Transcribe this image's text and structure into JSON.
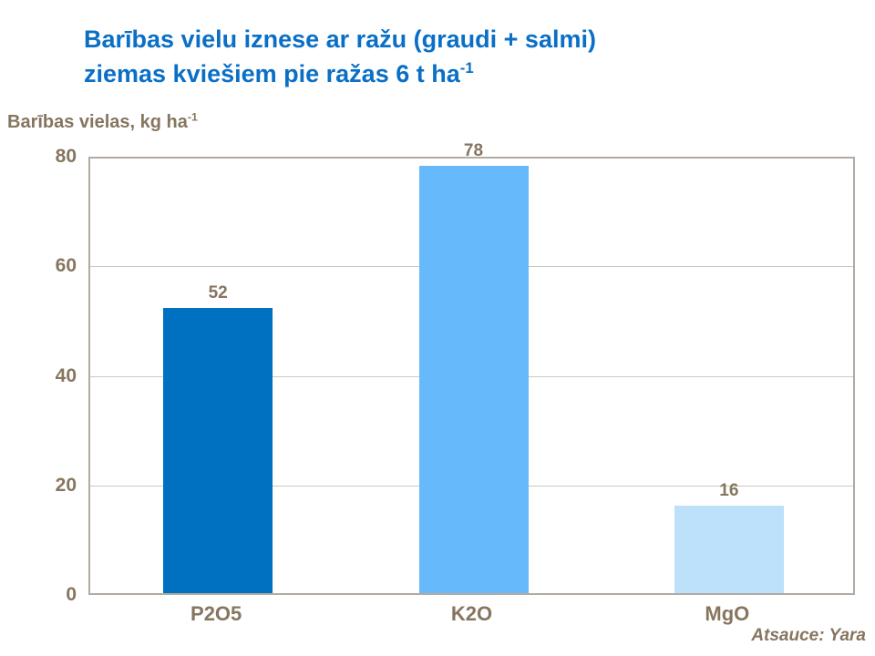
{
  "title": {
    "line1": "Barības vielu iznese ar ražu (graudi + salmi)",
    "line2_main": "ziemas kviešiem pie ražas 6 t ha",
    "line2_sup": "-1"
  },
  "axis_title": {
    "main": "Barības vielas, kg ha",
    "sup": "-1"
  },
  "source": "Atsauce: Yara",
  "colors": {
    "title_blue": "#0a6fc6",
    "text_brown": "#86755f",
    "plot_border": "#b3aba1",
    "gridline": "#cfc8c0",
    "bar_p2o5": "#0070c0",
    "bar_k2o": "#66b9fa",
    "bar_mgo": "#bde0fb"
  },
  "chart_data": {
    "type": "bar",
    "title": "Barības vielu iznese ar ražu (graudi + salmi) ziemas kviešiem pie ražas 6 t ha-1",
    "ylabel": "Barības vielas, kg ha-1",
    "xlabel": "",
    "categories": [
      "P2O5",
      "K2O",
      "MgO"
    ],
    "values": [
      52,
      78,
      16
    ],
    "bar_colors": [
      "#0070c0",
      "#66b9fa",
      "#bde0fb"
    ],
    "ylim": [
      0,
      80
    ],
    "yticks": [
      0,
      20,
      40,
      60,
      80
    ],
    "grid": true,
    "legend_position": "none"
  }
}
